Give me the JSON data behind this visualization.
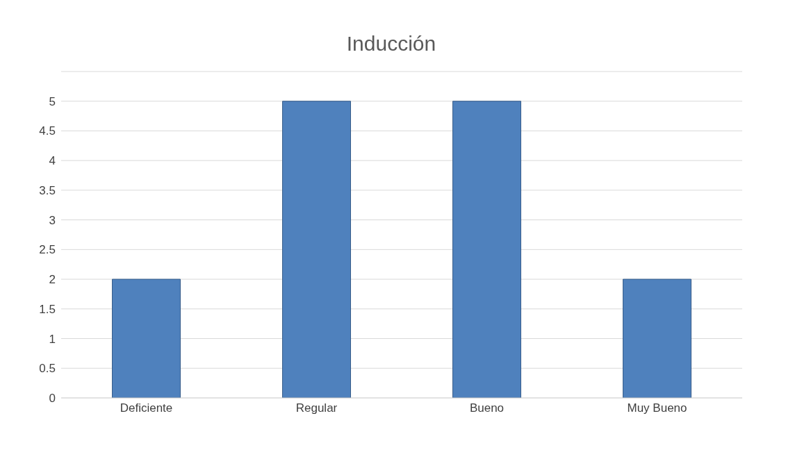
{
  "chart_data": {
    "type": "bar",
    "title": "Inducción",
    "categories": [
      "Deficiente",
      "Regular",
      "Bueno",
      "Muy Bueno"
    ],
    "values": [
      2,
      5,
      5,
      2
    ],
    "color": "#4f81bd",
    "ylim": [
      0,
      5.5
    ],
    "yticks": [
      0,
      0.5,
      1,
      1.5,
      2,
      2.5,
      3,
      3.5,
      4,
      4.5,
      5,
      {
        "value": 5.5,
        "label": null
      }
    ],
    "grid": "y"
  }
}
